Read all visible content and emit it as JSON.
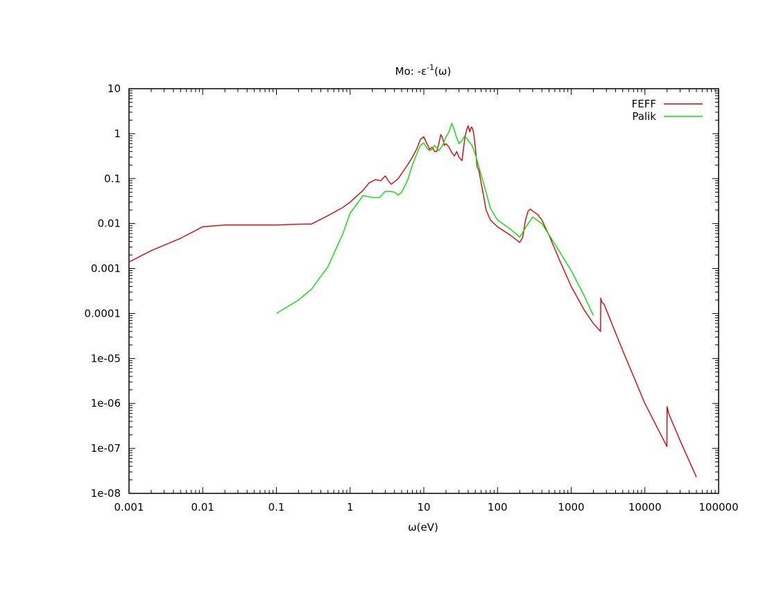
{
  "chart_data": {
    "type": "line",
    "title": {
      "prefix": "Mo: -ε",
      "sup": "-1",
      "suffix": "(ω)"
    },
    "xlabel": "ω(eV)",
    "ylabel": "",
    "xscale": "log",
    "yscale": "log",
    "xlim": [
      0.001,
      100000
    ],
    "ylim": [
      1e-08,
      10
    ],
    "xticks": [
      "0.001",
      "0.01",
      "0.1",
      "1",
      "10",
      "100",
      "1000",
      "10000",
      "100000"
    ],
    "yticks": [
      "1e-08",
      "1e-07",
      "1e-06",
      "1e-05",
      "0.0001",
      "0.001",
      "0.01",
      "0.1",
      "1",
      "10"
    ],
    "legend_position": "top-right",
    "grid": false,
    "series": [
      {
        "name": "FEFF",
        "color": "#e00000",
        "x": [
          0.001,
          0.002,
          0.005,
          0.01,
          0.02,
          0.05,
          0.1,
          0.2,
          0.3,
          0.5,
          0.8,
          1.0,
          1.5,
          1.8,
          2.2,
          2.6,
          3.0,
          3.3,
          3.6,
          4.0,
          4.5,
          5.0,
          6.0,
          7.0,
          8.0,
          9.0,
          10.0,
          11.0,
          12.0,
          13.0,
          14.0,
          15.0,
          16.0,
          17.0,
          18.0,
          19.0,
          20.0,
          22.0,
          24.0,
          26.0,
          28.0,
          30.0,
          33.0,
          36.0,
          38.0,
          40.0,
          42.0,
          44.0,
          46.0,
          48.0,
          50.0,
          53.0,
          56.0,
          60.0,
          65.0,
          70.0,
          80.0,
          90.0,
          100.0,
          150.0,
          200.0,
          220.0,
          240.0,
          260.0,
          280.0,
          300.0,
          350.0,
          400.0,
          500.0,
          700.0,
          1000.0,
          1500.0,
          2000.0,
          2500.0,
          2520.0,
          2600.0,
          2800.0,
          3000.0,
          5000.0,
          10000.0,
          19900.0,
          20000.0,
          21000.0,
          30000.0,
          50000.0
        ],
        "y": [
          0.0014,
          0.0025,
          0.0047,
          0.0085,
          0.0093,
          0.0093,
          0.0093,
          0.0097,
          0.0098,
          0.015,
          0.023,
          0.03,
          0.055,
          0.08,
          0.095,
          0.09,
          0.115,
          0.09,
          0.075,
          0.085,
          0.1,
          0.13,
          0.2,
          0.3,
          0.45,
          0.75,
          0.85,
          0.6,
          0.45,
          0.5,
          0.4,
          0.4,
          0.6,
          0.95,
          0.8,
          0.55,
          0.6,
          0.5,
          0.38,
          0.32,
          0.4,
          0.3,
          0.25,
          0.8,
          1.2,
          1.5,
          1.1,
          1.4,
          1.3,
          0.9,
          0.5,
          0.18,
          0.15,
          0.08,
          0.04,
          0.02,
          0.012,
          0.01,
          0.0085,
          0.0055,
          0.0038,
          0.005,
          0.012,
          0.019,
          0.021,
          0.019,
          0.016,
          0.012,
          0.0055,
          0.0015,
          0.0004,
          0.00012,
          6e-05,
          4e-05,
          0.00022,
          0.00018,
          0.00016,
          0.00012,
          1.5e-05,
          1e-06,
          1.1e-07,
          8.5e-07,
          6e-07,
          1.5e-07,
          2.3e-08
        ]
      },
      {
        "name": "Palik",
        "color": "#00e000",
        "x": [
          0.1,
          0.2,
          0.3,
          0.5,
          0.8,
          1.0,
          1.5,
          2.0,
          2.5,
          3.0,
          3.5,
          4.0,
          4.5,
          5.0,
          6.0,
          7.0,
          8.0,
          9.0,
          10.0,
          11.0,
          12.0,
          13.0,
          14.0,
          16.0,
          18.0,
          20.0,
          22.0,
          24.0,
          26.0,
          28.0,
          30.0,
          33.0,
          36.0,
          40.0,
          45.0,
          50.0,
          60.0,
          70.0,
          80.0,
          100.0,
          150.0,
          200.0,
          250.0,
          300.0,
          400.0,
          600.0,
          1000.0,
          1500.0,
          2000.0
        ],
        "y": [
          0.0001,
          0.0002,
          0.00035,
          0.0011,
          0.006,
          0.017,
          0.042,
          0.038,
          0.038,
          0.052,
          0.052,
          0.05,
          0.043,
          0.05,
          0.09,
          0.2,
          0.35,
          0.55,
          0.62,
          0.48,
          0.42,
          0.45,
          0.55,
          0.42,
          0.55,
          0.85,
          1.1,
          1.7,
          1.2,
          0.8,
          0.6,
          0.7,
          0.9,
          0.7,
          0.55,
          0.35,
          0.12,
          0.05,
          0.022,
          0.012,
          0.0075,
          0.005,
          0.009,
          0.014,
          0.01,
          0.0035,
          0.0009,
          0.00025,
          9e-05
        ]
      }
    ]
  }
}
